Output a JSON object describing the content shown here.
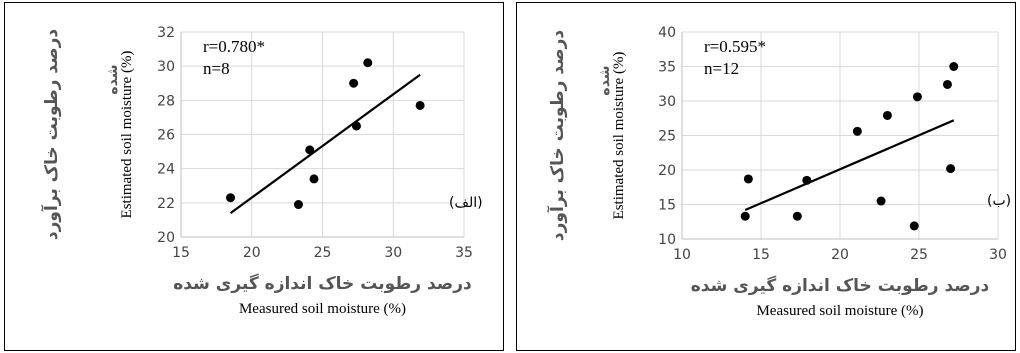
{
  "chart_data": [
    {
      "type": "scatter",
      "panel_tag": "(الف)",
      "stats": {
        "r": "r=0.780*",
        "n": "n=8"
      },
      "xlabel": "Measured soil moisture (%)",
      "xlabel_fa": "درصد رطوبت خاک اندازه گیری شده",
      "ylabel": "Estimated soil moisture (%)",
      "ylabel_fa": "درصد رطوبت خاک برآورد",
      "ylabel_fa_2": "شده",
      "xlim": [
        15,
        35
      ],
      "ylim": [
        20,
        32
      ],
      "xticks": [
        "15",
        "20",
        "25",
        "30",
        "35"
      ],
      "yticks": [
        "20",
        "22",
        "24",
        "26",
        "28",
        "30",
        "32"
      ],
      "grid": true,
      "points": [
        {
          "x": 18.5,
          "y": 22.3
        },
        {
          "x": 23.3,
          "y": 21.9
        },
        {
          "x": 24.1,
          "y": 25.1
        },
        {
          "x": 24.4,
          "y": 23.4
        },
        {
          "x": 27.2,
          "y": 29.0
        },
        {
          "x": 27.4,
          "y": 26.5
        },
        {
          "x": 28.2,
          "y": 30.2
        },
        {
          "x": 31.9,
          "y": 27.7
        }
      ],
      "trendline": [
        {
          "x": 18.5,
          "y": 21.4
        },
        {
          "x": 31.9,
          "y": 29.5
        }
      ]
    },
    {
      "type": "scatter",
      "panel_tag": "(ب)",
      "stats": {
        "r": "r=0.595*",
        "n": "n=12"
      },
      "xlabel": "Measured soil moisture (%)",
      "xlabel_fa": "درصد رطوبت خاک اندازه گیری شده",
      "ylabel": "Estimated soil moisture (%)",
      "ylabel_fa": "درصد رطوبت خاک برآورد",
      "ylabel_fa_2": "شده",
      "xlim": [
        10,
        30
      ],
      "ylim": [
        10,
        40
      ],
      "xticks": [
        "10",
        "15",
        "20",
        "25",
        "30"
      ],
      "yticks": [
        "10",
        "15",
        "20",
        "25",
        "30",
        "35",
        "40"
      ],
      "grid": true,
      "points": [
        {
          "x": 14.0,
          "y": 13.3
        },
        {
          "x": 14.2,
          "y": 18.7
        },
        {
          "x": 17.3,
          "y": 13.3
        },
        {
          "x": 17.9,
          "y": 18.5
        },
        {
          "x": 21.1,
          "y": 25.6
        },
        {
          "x": 22.6,
          "y": 15.5
        },
        {
          "x": 23.0,
          "y": 27.9
        },
        {
          "x": 24.7,
          "y": 11.9
        },
        {
          "x": 24.9,
          "y": 30.6
        },
        {
          "x": 26.8,
          "y": 32.4
        },
        {
          "x": 27.0,
          "y": 20.2
        },
        {
          "x": 27.2,
          "y": 35.0
        }
      ],
      "trendline": [
        {
          "x": 14.0,
          "y": 14.2
        },
        {
          "x": 27.2,
          "y": 27.2
        }
      ]
    }
  ]
}
